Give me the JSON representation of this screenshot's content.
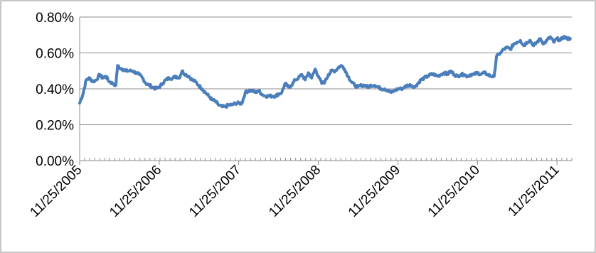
{
  "chart_data": {
    "type": "line",
    "title": "",
    "xlabel": "",
    "ylabel": "",
    "ylim": [
      0,
      0.008
    ],
    "y_ticks": [
      {
        "value": 0.0,
        "label": "0.00%"
      },
      {
        "value": 0.002,
        "label": "0.20%"
      },
      {
        "value": 0.004,
        "label": "0.40%"
      },
      {
        "value": 0.006,
        "label": "0.60%"
      },
      {
        "value": 0.008,
        "label": "0.80%"
      }
    ],
    "xlim": [
      "11/25/2005",
      "2/1/2012"
    ],
    "x_ticks": [
      "11/25/2005",
      "11/25/2006",
      "11/25/2007",
      "11/25/2008",
      "11/25/2009",
      "11/25/2010",
      "11/25/2011"
    ],
    "grid": "horizontal",
    "line_color": "#4a7ebb",
    "series": [
      {
        "name": "",
        "points": [
          [
            "11/25/2005",
            0.0032
          ],
          [
            "12/10/2005",
            0.0037
          ],
          [
            "12/25/2005",
            0.0045
          ],
          [
            "1/10/2006",
            0.0046
          ],
          [
            "1/25/2006",
            0.0044
          ],
          [
            "2/10/2006",
            0.0045
          ],
          [
            "2/25/2006",
            0.0048
          ],
          [
            "3/10/2006",
            0.0046
          ],
          [
            "3/25/2006",
            0.0047
          ],
          [
            "4/10/2006",
            0.0044
          ],
          [
            "4/25/2006",
            0.0043
          ],
          [
            "5/10/2006",
            0.0042
          ],
          [
            "5/18/2006",
            0.0053
          ],
          [
            "5/25/2006",
            0.0052
          ],
          [
            "6/10/2006",
            0.0051
          ],
          [
            "6/25/2006",
            0.005
          ],
          [
            "7/10/2006",
            0.005
          ],
          [
            "7/25/2006",
            0.005
          ],
          [
            "8/10/2006",
            0.0049
          ],
          [
            "8/25/2006",
            0.0048
          ],
          [
            "9/10/2006",
            0.0046
          ],
          [
            "9/25/2006",
            0.0043
          ],
          [
            "10/10/2006",
            0.0042
          ],
          [
            "10/25/2006",
            0.0041
          ],
          [
            "11/10/2006",
            0.004
          ],
          [
            "11/25/2006",
            0.0041
          ],
          [
            "12/10/2006",
            0.0043
          ],
          [
            "12/25/2006",
            0.0045
          ],
          [
            "1/10/2007",
            0.0046
          ],
          [
            "1/25/2007",
            0.0046
          ],
          [
            "2/10/2007",
            0.0047
          ],
          [
            "2/25/2007",
            0.0046
          ],
          [
            "3/10/2007",
            0.005
          ],
          [
            "3/25/2007",
            0.0048
          ],
          [
            "4/10/2007",
            0.0047
          ],
          [
            "4/25/2007",
            0.0045
          ],
          [
            "5/10/2007",
            0.0044
          ],
          [
            "5/25/2007",
            0.0042
          ],
          [
            "6/10/2007",
            0.004
          ],
          [
            "6/25/2007",
            0.0038
          ],
          [
            "7/10/2007",
            0.0036
          ],
          [
            "7/25/2007",
            0.0034
          ],
          [
            "8/10/2007",
            0.0033
          ],
          [
            "8/25/2007",
            0.0031
          ],
          [
            "9/10/2007",
            0.003
          ],
          [
            "9/25/2007",
            0.003
          ],
          [
            "10/10/2007",
            0.0031
          ],
          [
            "10/25/2007",
            0.0031
          ],
          [
            "11/10/2007",
            0.0032
          ],
          [
            "11/25/2007",
            0.0032
          ],
          [
            "12/10/2007",
            0.0032
          ],
          [
            "12/25/2007",
            0.0038
          ],
          [
            "1/10/2008",
            0.0039
          ],
          [
            "1/25/2008",
            0.0039
          ],
          [
            "2/10/2008",
            0.0038
          ],
          [
            "2/25/2008",
            0.0039
          ],
          [
            "3/10/2008",
            0.0037
          ],
          [
            "3/25/2008",
            0.0036
          ],
          [
            "4/10/2008",
            0.0036
          ],
          [
            "4/25/2008",
            0.0036
          ],
          [
            "5/10/2008",
            0.0036
          ],
          [
            "5/25/2008",
            0.0037
          ],
          [
            "6/10/2008",
            0.0038
          ],
          [
            "6/25/2008",
            0.0043
          ],
          [
            "7/10/2008",
            0.0041
          ],
          [
            "7/25/2008",
            0.0042
          ],
          [
            "8/10/2008",
            0.0045
          ],
          [
            "8/25/2008",
            0.0046
          ],
          [
            "9/10/2008",
            0.0048
          ],
          [
            "9/25/2008",
            0.0045
          ],
          [
            "10/10/2008",
            0.0049
          ],
          [
            "10/25/2008",
            0.0046
          ],
          [
            "11/10/2008",
            0.0051
          ],
          [
            "11/25/2008",
            0.0047
          ],
          [
            "12/10/2008",
            0.0043
          ],
          [
            "12/25/2008",
            0.0044
          ],
          [
            "1/10/2009",
            0.0048
          ],
          [
            "1/25/2009",
            0.005
          ],
          [
            "2/10/2009",
            0.005
          ],
          [
            "2/25/2009",
            0.0052
          ],
          [
            "3/10/2009",
            0.0053
          ],
          [
            "3/25/2009",
            0.0051
          ],
          [
            "4/10/2009",
            0.0047
          ],
          [
            "4/25/2009",
            0.0044
          ],
          [
            "5/10/2009",
            0.0042
          ],
          [
            "5/25/2009",
            0.0041
          ],
          [
            "6/10/2009",
            0.0042
          ],
          [
            "6/25/2009",
            0.0042
          ],
          [
            "7/10/2009",
            0.0041
          ],
          [
            "7/25/2009",
            0.0042
          ],
          [
            "8/10/2009",
            0.0042
          ],
          [
            "8/25/2009",
            0.0041
          ],
          [
            "9/10/2009",
            0.004
          ],
          [
            "9/25/2009",
            0.004
          ],
          [
            "10/10/2009",
            0.0039
          ],
          [
            "10/25/2009",
            0.0038
          ],
          [
            "11/10/2009",
            0.0039
          ],
          [
            "11/25/2009",
            0.004
          ],
          [
            "12/10/2009",
            0.004
          ],
          [
            "12/25/2009",
            0.0041
          ],
          [
            "1/10/2010",
            0.0042
          ],
          [
            "1/25/2010",
            0.0042
          ],
          [
            "2/10/2010",
            0.0041
          ],
          [
            "2/25/2010",
            0.0043
          ],
          [
            "3/10/2010",
            0.0045
          ],
          [
            "3/25/2010",
            0.0046
          ],
          [
            "4/10/2010",
            0.0047
          ],
          [
            "4/25/2010",
            0.0048
          ],
          [
            "5/10/2010",
            0.0048
          ],
          [
            "5/25/2010",
            0.0047
          ],
          [
            "6/10/2010",
            0.0048
          ],
          [
            "6/25/2010",
            0.0049
          ],
          [
            "7/10/2010",
            0.0048
          ],
          [
            "7/25/2010",
            0.005
          ],
          [
            "8/10/2010",
            0.0048
          ],
          [
            "8/25/2010",
            0.0047
          ],
          [
            "9/10/2010",
            0.0048
          ],
          [
            "9/25/2010",
            0.0048
          ],
          [
            "10/10/2010",
            0.0047
          ],
          [
            "10/25/2010",
            0.0048
          ],
          [
            "11/10/2010",
            0.0048
          ],
          [
            "11/25/2010",
            0.0049
          ],
          [
            "12/10/2010",
            0.0048
          ],
          [
            "12/25/2010",
            0.0049
          ],
          [
            "1/10/2011",
            0.0048
          ],
          [
            "1/25/2011",
            0.0047
          ],
          [
            "2/10/2011",
            0.0047
          ],
          [
            "2/20/2011",
            0.0058
          ],
          [
            "3/10/2011",
            0.006
          ],
          [
            "3/25/2011",
            0.0062
          ],
          [
            "4/10/2011",
            0.0063
          ],
          [
            "4/25/2011",
            0.0062
          ],
          [
            "5/10/2011",
            0.0065
          ],
          [
            "5/25/2011",
            0.0066
          ],
          [
            "6/10/2011",
            0.0067
          ],
          [
            "6/25/2011",
            0.0064
          ],
          [
            "7/10/2011",
            0.0066
          ],
          [
            "7/25/2011",
            0.0067
          ],
          [
            "8/10/2011",
            0.0064
          ],
          [
            "8/25/2011",
            0.0066
          ],
          [
            "9/10/2011",
            0.0068
          ],
          [
            "9/25/2011",
            0.0065
          ],
          [
            "10/10/2011",
            0.0067
          ],
          [
            "10/25/2011",
            0.0069
          ],
          [
            "11/10/2011",
            0.0066
          ],
          [
            "11/25/2011",
            0.0068
          ],
          [
            "12/10/2011",
            0.0067
          ],
          [
            "12/25/2011",
            0.0069
          ],
          [
            "1/10/2012",
            0.0068
          ],
          [
            "1/25/2012",
            0.0068
          ]
        ]
      }
    ]
  }
}
